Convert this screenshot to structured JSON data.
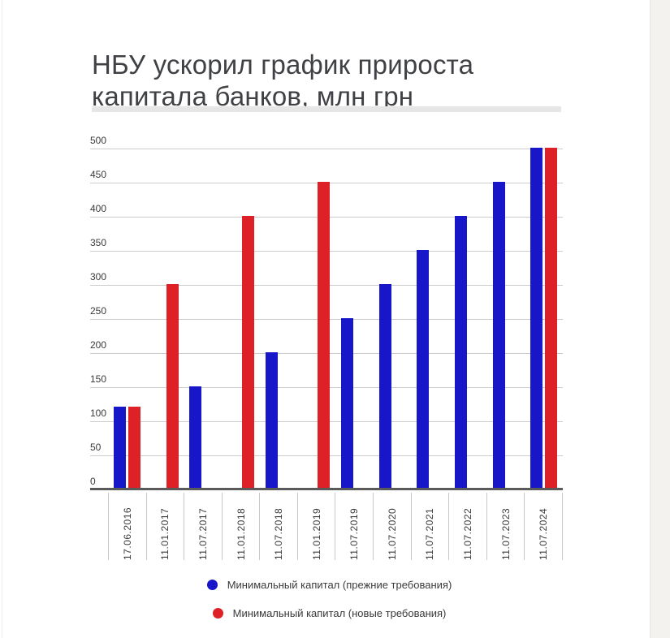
{
  "page": {
    "title": "НБУ ускорил график прироста капитала банков, млн грн"
  },
  "colors": {
    "series_old_blue": "#1717c9",
    "series_new_red": "#de2127",
    "gridline": "#cccccc",
    "axis_line": "#5a5a5a",
    "title_text": "#3f4144",
    "axis_label_text": "#3c3c3c",
    "title_divider": "#e6e6e6",
    "page_side_strip": "#f4f2ee"
  },
  "chart_data": {
    "type": "bar",
    "title": "НБУ ускорил график прироста капитала банков, млн грн",
    "unit": "млн грн",
    "categories": [
      "17.06.2016",
      "11.01.2017",
      "11.07.2017",
      "11.01.2018",
      "11.07.2018",
      "11.01.2019",
      "11.07.2019",
      "11.07.2020",
      "11.07.2021",
      "11.07.2022",
      "11.07.2023",
      "11.07.2024"
    ],
    "series": [
      {
        "name": "Минимальный капитал (прежние требования)",
        "color": "#1717c9",
        "values": [
          120,
          null,
          150,
          null,
          200,
          null,
          250,
          300,
          350,
          400,
          450,
          500
        ]
      },
      {
        "name": "Минимальный капитал (новые требования)",
        "color": "#de2127",
        "values": [
          120,
          300,
          null,
          400,
          null,
          450,
          null,
          null,
          null,
          null,
          null,
          500
        ]
      }
    ],
    "ylim": [
      0,
      500
    ],
    "ytick_step": 50,
    "yticks": [
      0,
      50,
      100,
      150,
      200,
      250,
      300,
      350,
      400,
      450,
      500
    ],
    "grid": true,
    "xlabel_rotation": -90,
    "legend_position": "bottom"
  }
}
